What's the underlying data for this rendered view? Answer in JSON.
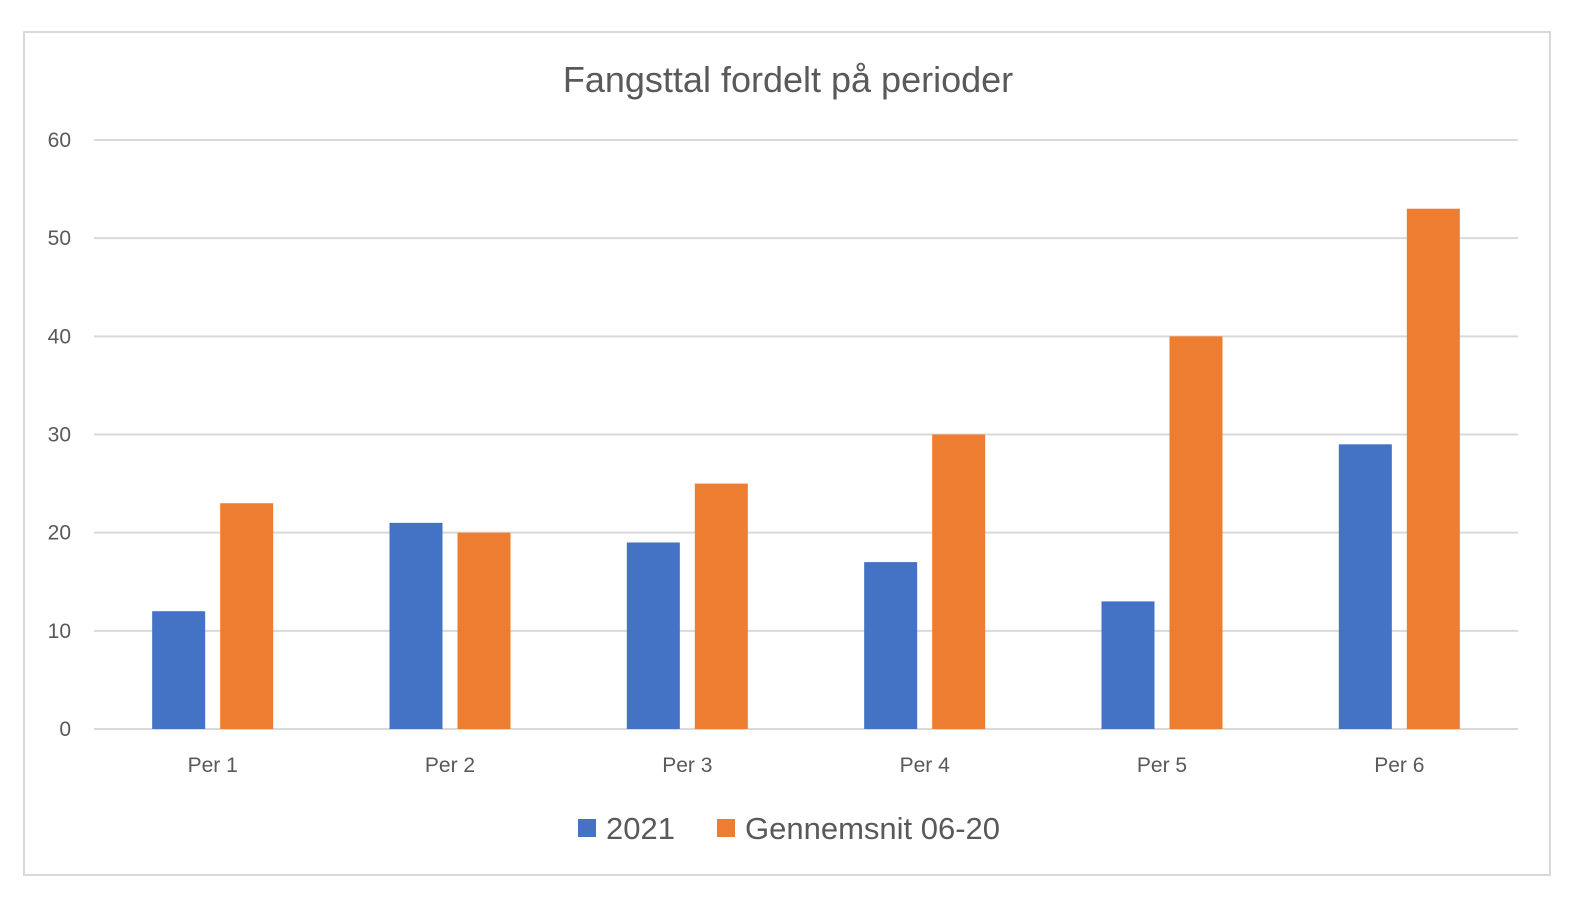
{
  "chart_data": {
    "type": "bar",
    "title": "Fangsttal fordelt på perioder",
    "xlabel": "",
    "ylabel": "",
    "categories": [
      "Per 1",
      "Per 2",
      "Per 3",
      "Per 4",
      "Per 5",
      "Per 6"
    ],
    "series": [
      {
        "name": "2021",
        "color": "#4472c4",
        "values": [
          12,
          21,
          19,
          17,
          13,
          29
        ]
      },
      {
        "name": "Gennemsnit 06-20",
        "color": "#ed7d31",
        "values": [
          23,
          20,
          25,
          30,
          40,
          53
        ]
      }
    ],
    "ylim": [
      0,
      60
    ],
    "yticks": [
      "0",
      "10",
      "20",
      "30",
      "40",
      "50",
      "60"
    ],
    "grid": true,
    "legend_position": "bottom"
  }
}
